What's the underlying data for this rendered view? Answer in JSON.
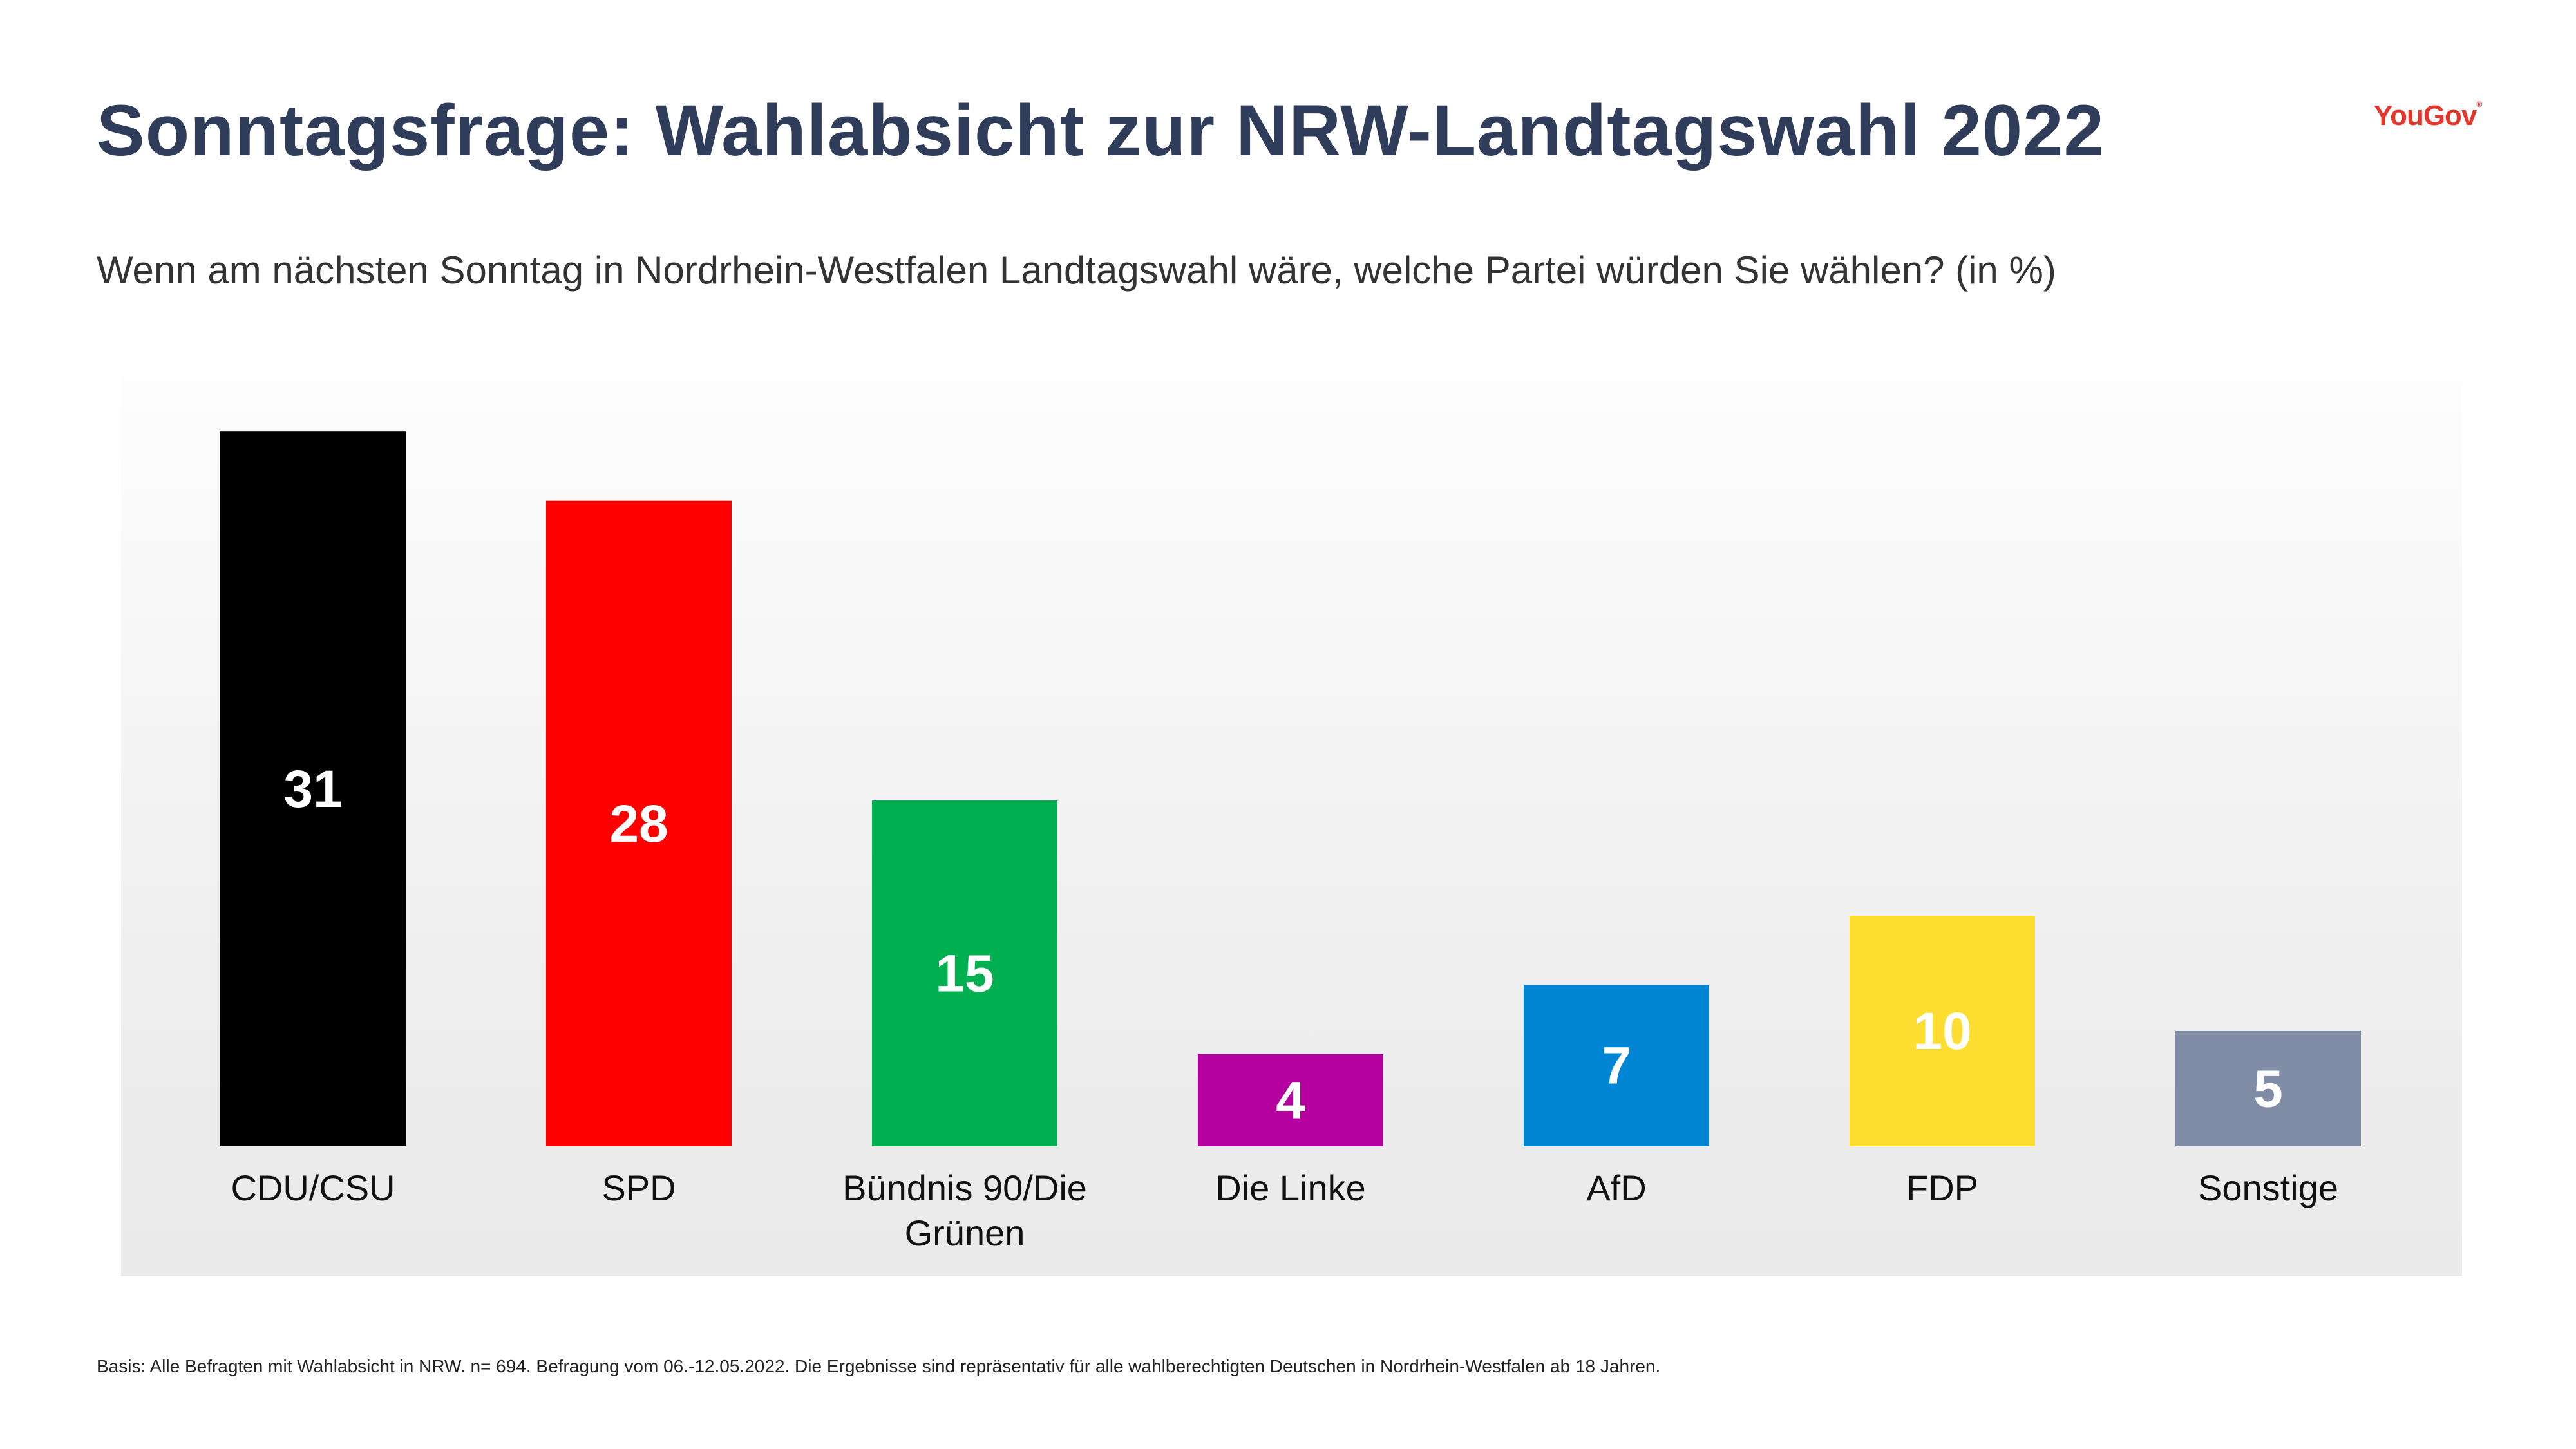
{
  "header": {
    "title": "Sonntagsfrage: Wahlabsicht zur NRW-Landtagswahl 2022",
    "logo": "YouGov"
  },
  "subtitle": "Wenn am nächsten Sonntag in Nordrhein-Westfalen Landtagswahl wäre, welche Partei würden Sie wählen? (in %)",
  "footnote": "Basis: Alle Befragten mit Wahlabsicht in NRW. n= 694. Befragung vom 06.-12.05.2022. Die Ergebnisse sind repräsentativ für alle wahlberechtigten Deutschen in Nordrhein-Westfalen ab 18 Jahren.",
  "chart_data": {
    "type": "bar",
    "title": "",
    "xlabel": "",
    "ylabel": "",
    "ylim": [
      0,
      31
    ],
    "grid": false,
    "categories": [
      "CDU/CSU",
      "SPD",
      "Bündnis 90/Die Grünen",
      "Die Linke",
      "AfD",
      "FDP",
      "Sonstige"
    ],
    "category_lines": [
      [
        "CDU/CSU"
      ],
      [
        "SPD"
      ],
      [
        "Bündnis 90/Die",
        "Grünen"
      ],
      [
        "Die Linke"
      ],
      [
        "AfD"
      ],
      [
        "FDP"
      ],
      [
        "Sonstige"
      ]
    ],
    "values": [
      31,
      28,
      15,
      4,
      7,
      10,
      5
    ],
    "colors": [
      "#000000",
      "#ff0000",
      "#00b050",
      "#b4009e",
      "#0085d5",
      "#fddd30",
      "#818ca6"
    ]
  }
}
